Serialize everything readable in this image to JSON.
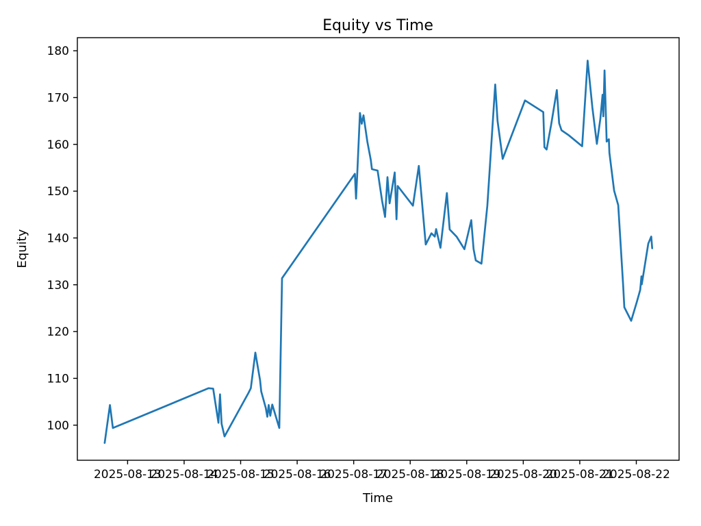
{
  "figure": {
    "title": "Equity vs Time",
    "xlabel": "Time",
    "ylabel": "Equity"
  },
  "chart_data": {
    "type": "line",
    "title": "Equity vs Time",
    "xlabel": "Time",
    "ylabel": "Equity",
    "legend_position": "none",
    "grid": false,
    "background_color": "#ffffff",
    "axis_color": "#000000",
    "series_color": "#1f77b4",
    "ylim": [
      92.5,
      182.8
    ],
    "xlim": [
      "2025-08-12T02:40",
      "2025-08-22T18:10"
    ],
    "yticks": [
      100,
      110,
      120,
      130,
      140,
      150,
      160,
      170,
      180
    ],
    "xticks": [
      "2025-08-13",
      "2025-08-14",
      "2025-08-15",
      "2025-08-16",
      "2025-08-17",
      "2025-08-18",
      "2025-08-19",
      "2025-08-20",
      "2025-08-21",
      "2025-08-22"
    ],
    "points": [
      {
        "t": "2025-08-12T14:15",
        "v": 96.2
      },
      {
        "t": "2025-08-12T16:30",
        "v": 104.3
      },
      {
        "t": "2025-08-12T17:45",
        "v": 99.4
      },
      {
        "t": "2025-08-14T10:25",
        "v": 107.9
      },
      {
        "t": "2025-08-14T12:20",
        "v": 107.8
      },
      {
        "t": "2025-08-14T14:35",
        "v": 100.5
      },
      {
        "t": "2025-08-14T15:15",
        "v": 106.6
      },
      {
        "t": "2025-08-14T15:55",
        "v": 100.3
      },
      {
        "t": "2025-08-14T17:10",
        "v": 97.6
      },
      {
        "t": "2025-08-15T03:20",
        "v": 106.9
      },
      {
        "t": "2025-08-15T04:20",
        "v": 107.9
      },
      {
        "t": "2025-08-15T06:15",
        "v": 115.5
      },
      {
        "t": "2025-08-15T08:15",
        "v": 109.6
      },
      {
        "t": "2025-08-15T08:45",
        "v": 107.2
      },
      {
        "t": "2025-08-15T10:40",
        "v": 103.7
      },
      {
        "t": "2025-08-15T11:20",
        "v": 101.8
      },
      {
        "t": "2025-08-15T11:55",
        "v": 104.3
      },
      {
        "t": "2025-08-15T12:35",
        "v": 102.0
      },
      {
        "t": "2025-08-15T13:25",
        "v": 104.4
      },
      {
        "t": "2025-08-15T16:25",
        "v": 99.4
      },
      {
        "t": "2025-08-15T17:35",
        "v": 131.4
      },
      {
        "t": "2025-08-17T00:30",
        "v": 153.7
      },
      {
        "t": "2025-08-17T01:00",
        "v": 148.4
      },
      {
        "t": "2025-08-17T01:30",
        "v": 153.5
      },
      {
        "t": "2025-08-17T02:40",
        "v": 166.7
      },
      {
        "t": "2025-08-17T03:25",
        "v": 164.4
      },
      {
        "t": "2025-08-17T04:10",
        "v": 166.2
      },
      {
        "t": "2025-08-17T05:50",
        "v": 160.5
      },
      {
        "t": "2025-08-17T07:15",
        "v": 156.7
      },
      {
        "t": "2025-08-17T07:45",
        "v": 154.7
      },
      {
        "t": "2025-08-17T10:10",
        "v": 154.4
      },
      {
        "t": "2025-08-17T12:05",
        "v": 147.9
      },
      {
        "t": "2025-08-17T13:20",
        "v": 144.5
      },
      {
        "t": "2025-08-17T14:20",
        "v": 153.0
      },
      {
        "t": "2025-08-17T15:15",
        "v": 147.4
      },
      {
        "t": "2025-08-17T17:25",
        "v": 154.0
      },
      {
        "t": "2025-08-17T18:10",
        "v": 144.0
      },
      {
        "t": "2025-08-17T18:40",
        "v": 151.1
      },
      {
        "t": "2025-08-18T01:10",
        "v": 146.9
      },
      {
        "t": "2025-08-18T03:40",
        "v": 155.4
      },
      {
        "t": "2025-08-18T06:35",
        "v": 138.6
      },
      {
        "t": "2025-08-18T09:00",
        "v": 141.0
      },
      {
        "t": "2025-08-18T10:25",
        "v": 140.3
      },
      {
        "t": "2025-08-18T11:00",
        "v": 141.9
      },
      {
        "t": "2025-08-18T12:50",
        "v": 137.9
      },
      {
        "t": "2025-08-18T15:35",
        "v": 149.6
      },
      {
        "t": "2025-08-18T16:45",
        "v": 141.8
      },
      {
        "t": "2025-08-18T19:40",
        "v": 140.3
      },
      {
        "t": "2025-08-18T23:00",
        "v": 137.6
      },
      {
        "t": "2025-08-19T01:55",
        "v": 143.8
      },
      {
        "t": "2025-08-19T02:55",
        "v": 137.6
      },
      {
        "t": "2025-08-19T03:50",
        "v": 135.2
      },
      {
        "t": "2025-08-19T06:15",
        "v": 134.5
      },
      {
        "t": "2025-08-19T08:45",
        "v": 146.9
      },
      {
        "t": "2025-08-19T12:05",
        "v": 172.8
      },
      {
        "t": "2025-08-19T13:05",
        "v": 165.0
      },
      {
        "t": "2025-08-19T15:15",
        "v": 156.9
      },
      {
        "t": "2025-08-20T00:45",
        "v": 169.4
      },
      {
        "t": "2025-08-20T08:30",
        "v": 166.9
      },
      {
        "t": "2025-08-20T09:00",
        "v": 159.4
      },
      {
        "t": "2025-08-20T09:55",
        "v": 158.9
      },
      {
        "t": "2025-08-20T11:50",
        "v": 164.2
      },
      {
        "t": "2025-08-20T14:15",
        "v": 171.6
      },
      {
        "t": "2025-08-20T15:15",
        "v": 164.5
      },
      {
        "t": "2025-08-20T16:15",
        "v": 163.0
      },
      {
        "t": "2025-08-20T19:10",
        "v": 162.0
      },
      {
        "t": "2025-08-21T00:30",
        "v": 159.8
      },
      {
        "t": "2025-08-21T01:00",
        "v": 159.6
      },
      {
        "t": "2025-08-21T03:20",
        "v": 177.9
      },
      {
        "t": "2025-08-21T05:20",
        "v": 167.9
      },
      {
        "t": "2025-08-21T07:15",
        "v": 160.1
      },
      {
        "t": "2025-08-21T08:45",
        "v": 165.5
      },
      {
        "t": "2025-08-21T09:40",
        "v": 170.6
      },
      {
        "t": "2025-08-21T10:00",
        "v": 166.0
      },
      {
        "t": "2025-08-21T10:30",
        "v": 175.8
      },
      {
        "t": "2025-08-21T11:25",
        "v": 160.6
      },
      {
        "t": "2025-08-21T12:20",
        "v": 161.1
      },
      {
        "t": "2025-08-21T12:35",
        "v": 158.2
      },
      {
        "t": "2025-08-21T14:35",
        "v": 150.1
      },
      {
        "t": "2025-08-21T16:20",
        "v": 147.0
      },
      {
        "t": "2025-08-21T18:25",
        "v": 129.8
      },
      {
        "t": "2025-08-21T18:55",
        "v": 125.2
      },
      {
        "t": "2025-08-21T21:50",
        "v": 122.3
      },
      {
        "t": "2025-08-22T00:15",
        "v": 126.4
      },
      {
        "t": "2025-08-22T01:40",
        "v": 128.9
      },
      {
        "t": "2025-08-22T02:10",
        "v": 131.8
      },
      {
        "t": "2025-08-22T02:20",
        "v": 130.1
      },
      {
        "t": "2025-08-22T05:05",
        "v": 138.8
      },
      {
        "t": "2025-08-22T06:20",
        "v": 140.3
      },
      {
        "t": "2025-08-22T06:45",
        "v": 137.8
      }
    ]
  }
}
